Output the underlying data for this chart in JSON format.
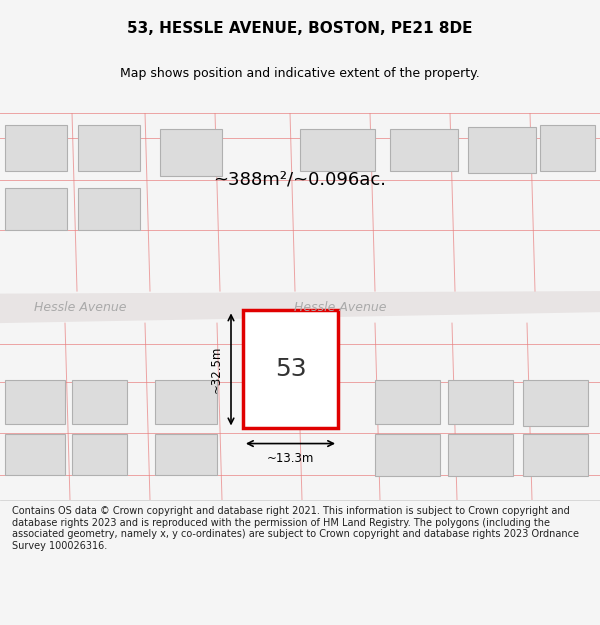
{
  "title": "53, HESSLE AVENUE, BOSTON, PE21 8DE",
  "subtitle": "Map shows position and indicative extent of the property.",
  "area_text": "~388m²/~0.096ac.",
  "number_label": "53",
  "width_label": "~13.3m",
  "height_label": "~32.5m",
  "street_name_left": "Hessle Avenue",
  "street_name_right": "Hessle Avenue",
  "footer_text": "Contains OS data © Crown copyright and database right 2021. This information is subject to Crown copyright and database rights 2023 and is reproduced with the permission of HM Land Registry. The polygons (including the associated geometry, namely x, y co-ordinates) are subject to Crown copyright and database rights 2023 Ordnance Survey 100026316.",
  "bg_color": "#f5f5f5",
  "map_bg": "#f0eeee",
  "road_color": "#e8e2e2",
  "plot_outline_color": "#e88080",
  "highlight_color": "#e00000",
  "building_fill": "#dcdcdc",
  "building_outline": "#b0b0b0",
  "footer_bg": "#ffffff",
  "title_color": "#000000",
  "road_label_color": "#aaaaaa"
}
